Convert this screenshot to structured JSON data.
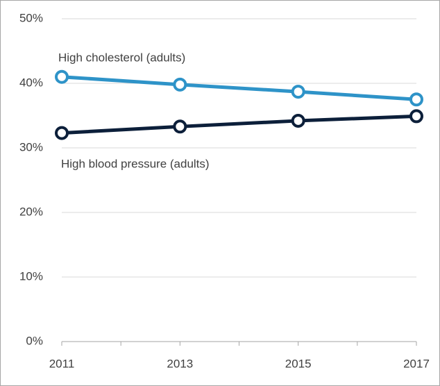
{
  "chart_data": {
    "type": "line",
    "x": [
      2011,
      2013,
      2015,
      2017
    ],
    "series": [
      {
        "name": "High cholesterol (adults)",
        "color": "#2e93c8",
        "values": [
          41,
          39.8,
          38.7,
          37.5
        ]
      },
      {
        "name": "High blood pressure (adults)",
        "color": "#0c1f3a",
        "values": [
          32.3,
          33.3,
          34.2,
          34.9
        ]
      }
    ],
    "xlim": [
      2011,
      2017
    ],
    "xticks": [
      2011,
      2013,
      2015,
      2017
    ],
    "ylim": [
      0,
      50
    ],
    "yticks": [
      {
        "value": 0,
        "label": "0%"
      },
      {
        "value": 10,
        "label": "10%"
      },
      {
        "value": 20,
        "label": "20%"
      },
      {
        "value": 30,
        "label": "30%"
      },
      {
        "value": 40,
        "label": "40%"
      },
      {
        "value": 50,
        "label": "50%"
      }
    ],
    "grid": true
  }
}
